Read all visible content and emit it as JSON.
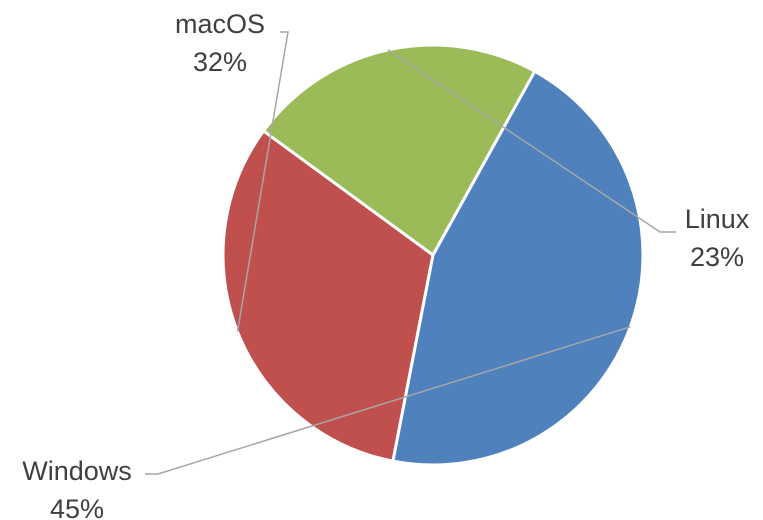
{
  "chart_data": {
    "type": "pie",
    "title": "",
    "slices": [
      {
        "name": "macOS",
        "value": 32,
        "percent_label": "32%",
        "color": "#c0504d"
      },
      {
        "name": "Linux",
        "value": 23,
        "percent_label": "23%",
        "color": "#9bbb59"
      },
      {
        "name": "Windows",
        "value": 45,
        "percent_label": "45%",
        "color": "#4f81bd"
      }
    ],
    "legend": "none",
    "data_labels": "outside-with-leader-lines"
  }
}
